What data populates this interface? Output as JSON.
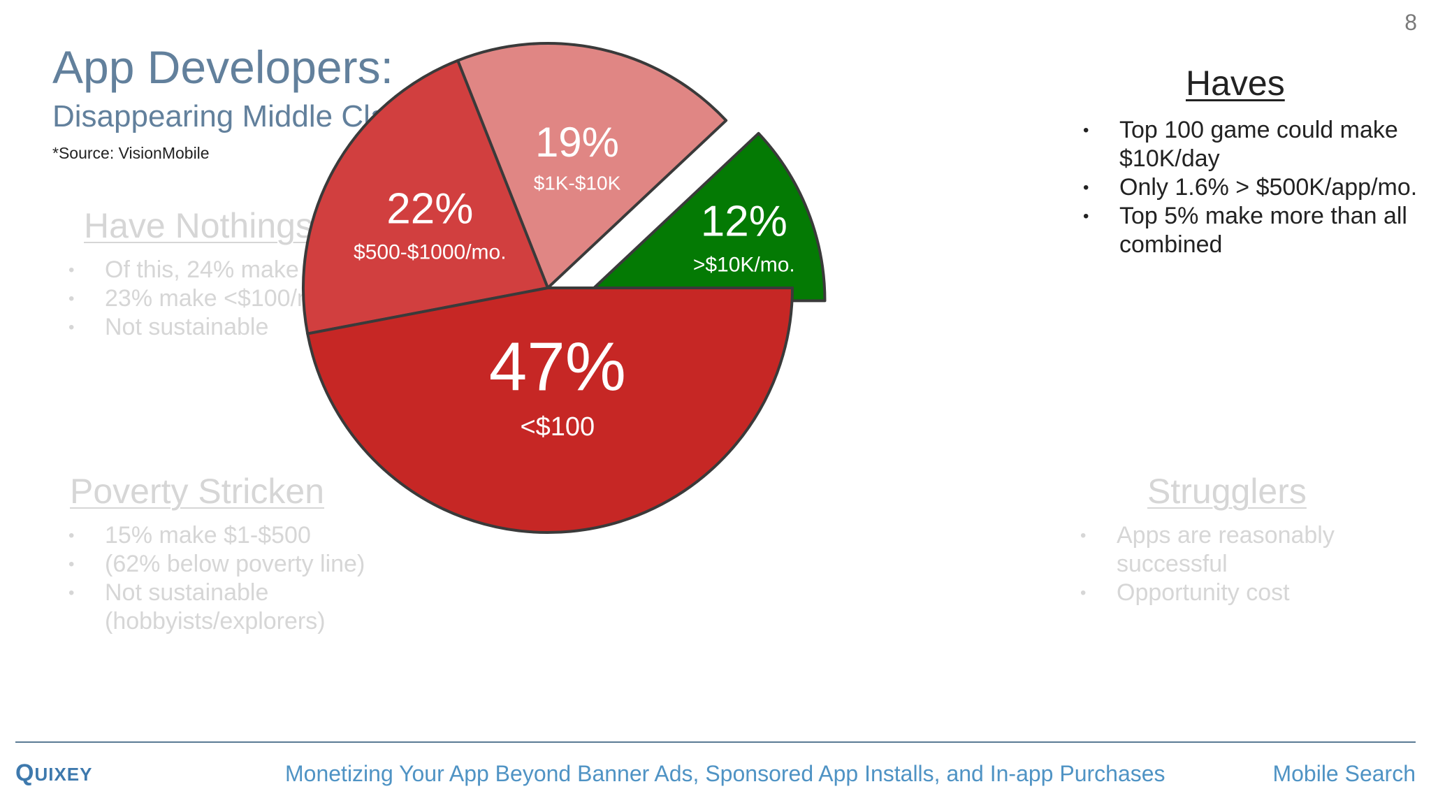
{
  "slide_number": "8",
  "title": "App Developers:",
  "subtitle": "Disappearing Middle Class",
  "source_note": "*Source: VisionMobile",
  "groups": {
    "have_nothings": {
      "heading": "Have Nothings",
      "bullets": [
        "Of this, 24% make $0",
        "23% make <$100/mo.",
        "Not sustainable"
      ]
    },
    "poverty_stricken": {
      "heading": "Poverty Stricken",
      "bullets": [
        "15% make $1-$500",
        "(62% below poverty line)",
        "Not sustainable\n(hobbyists/explorers)"
      ]
    },
    "strugglers": {
      "heading": "Strugglers",
      "bullets": [
        "Apps are reasonably\nsuccessful",
        "Opportunity cost"
      ]
    },
    "haves": {
      "heading": "Haves",
      "bullets": [
        "Top 100 game could make\n$10K/day",
        "Only 1.6% > $500K/app/mo.",
        "Top 5% make more than all\ncombined"
      ]
    }
  },
  "bullet_glyph": "•",
  "chart_data": {
    "type": "pie",
    "slices": [
      {
        "percent_label": "12%",
        "range_label": ">$10K/mo.",
        "value": 12,
        "color": "#047a04",
        "exploded": true
      },
      {
        "percent_label": "19%",
        "range_label": "$1K-$10K",
        "value": 19,
        "color": "#e08684",
        "exploded": false
      },
      {
        "percent_label": "22%",
        "range_label": "$500-$1000/mo.",
        "value": 22,
        "color": "#d13f3f",
        "exploded": false
      },
      {
        "percent_label": "47%",
        "range_label": "<$100",
        "value": 47,
        "color": "#c62725",
        "exploded": false
      }
    ],
    "start_angle_deg": 0,
    "direction": "clockwise",
    "outline_color": "#3a3a3a"
  },
  "footer": {
    "brand": "Quixey",
    "tagline": "Monetizing Your App Beyond Banner Ads, Sponsored App Installs, and In-app Purchases",
    "product": "Mobile Search"
  }
}
